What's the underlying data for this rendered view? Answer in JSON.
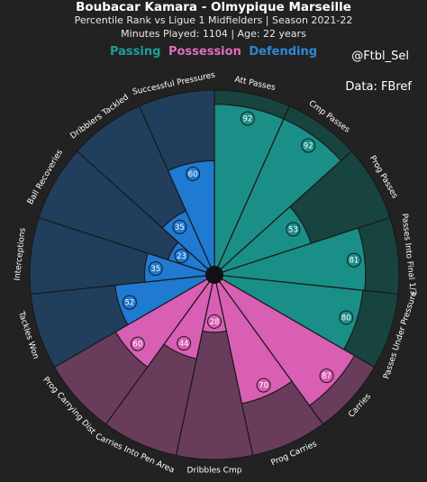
{
  "header": {
    "title": "Boubacar Kamara - Olmypique Marseille",
    "subtitle": "Percentile Rank vs Ligue 1 Midfielders | Season 2021-22",
    "minutes": "Minutes Played: 1104 | Age: 22 years"
  },
  "legend": {
    "passing": "Passing",
    "possession": "Possession",
    "defending": "Defending"
  },
  "credits": {
    "handle": "@Ftbl_Sel",
    "source": "Data: FBref"
  },
  "colors": {
    "background": "#222222",
    "passing": "#1a8f87",
    "passing_bg": "#18443f",
    "possession": "#d95fb4",
    "possession_bg": "#6a3c5c",
    "defending": "#1f7ad1",
    "defending_bg": "#213f5c",
    "passing_legend": "#1aa198",
    "possession_legend": "#e06ec0",
    "defending_legend": "#2f86d9"
  },
  "chart_data": {
    "type": "pizza",
    "max": 100,
    "categories": [
      "Att Passes",
      "Cmp Passes",
      "Prog Passes",
      "Passes Into Final 1/3",
      "Passes Under Pressure",
      "Carries",
      "Prog Carries",
      "Dribbles Cmp",
      "Carries Into Pen Area",
      "Prog Carrying Dist",
      "Tackles Won",
      "Interceptions",
      "Ball Recoveries",
      "Dribblers Tackled",
      "Successful Pressures"
    ],
    "values": [
      92,
      92,
      53,
      81,
      80,
      87,
      70,
      28,
      44,
      60,
      52,
      35,
      23,
      35,
      60
    ],
    "groups": [
      "passing",
      "passing",
      "passing",
      "passing",
      "passing",
      "possession",
      "possession",
      "possession",
      "possession",
      "possession",
      "defending",
      "defending",
      "defending",
      "defending",
      "defending"
    ]
  }
}
